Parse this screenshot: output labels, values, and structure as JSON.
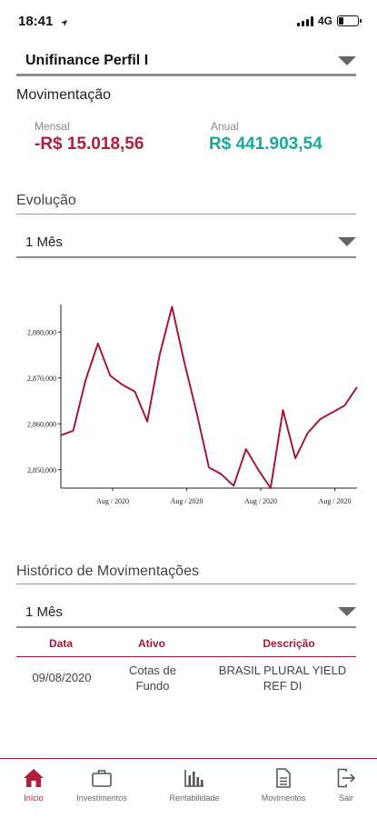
{
  "status": {
    "time": "18:41",
    "network": "4G"
  },
  "profile": {
    "selected": "Unifinance Perfil I"
  },
  "movimentacao": {
    "title": "Movimentação",
    "mensal_label": "Mensal",
    "mensal_value": "-R$ 15.018,56",
    "anual_label": "Anual",
    "anual_value": "R$ 441.903,54"
  },
  "evolucao": {
    "title": "Evolução",
    "period": "1 Mês"
  },
  "chart_data": {
    "type": "line",
    "y_tick_labels": [
      "2,880,000",
      "2,870,000",
      "2,860,000",
      "2,850,000"
    ],
    "x_tick_labels": [
      "Aug / 2020",
      "Aug / 2020",
      "Aug / 2020",
      "Aug / 2020"
    ],
    "ylim": [
      2846000,
      2886000
    ],
    "series": [
      {
        "color": "#a31a38",
        "values": [
          2857500,
          2858500,
          2869500,
          2877500,
          2870500,
          2868500,
          2867000,
          2860500,
          2875000,
          2885500,
          2873500,
          2862500,
          2850500,
          2849000,
          2846500,
          2854500,
          2850000,
          2846000,
          2863000,
          2852500,
          2858000,
          2861000,
          2862500,
          2864000,
          2868000
        ]
      }
    ]
  },
  "historico": {
    "title": "Histórico de Movimentações",
    "period": "1 Mês",
    "columns": [
      "Data",
      "Ativo",
      "Descrição"
    ],
    "rows": [
      {
        "data": "09/08/2020",
        "ativo_line1": "Cotas de",
        "ativo_line2": "Fundo",
        "descricao_line1": "BRASIL PLURAL YIELD",
        "descricao_line2": "REF DI"
      }
    ]
  },
  "tabbar": {
    "active_color": "#b01e3c",
    "items": [
      {
        "label": "Início",
        "icon": "home-icon"
      },
      {
        "label": "Investimentos",
        "icon": "briefcase-icon"
      },
      {
        "label": "Rentabilidade",
        "icon": "bar-chart-icon"
      },
      {
        "label": "Movimentos",
        "icon": "document-icon"
      },
      {
        "label": "Sair",
        "icon": "logout-icon"
      }
    ]
  }
}
